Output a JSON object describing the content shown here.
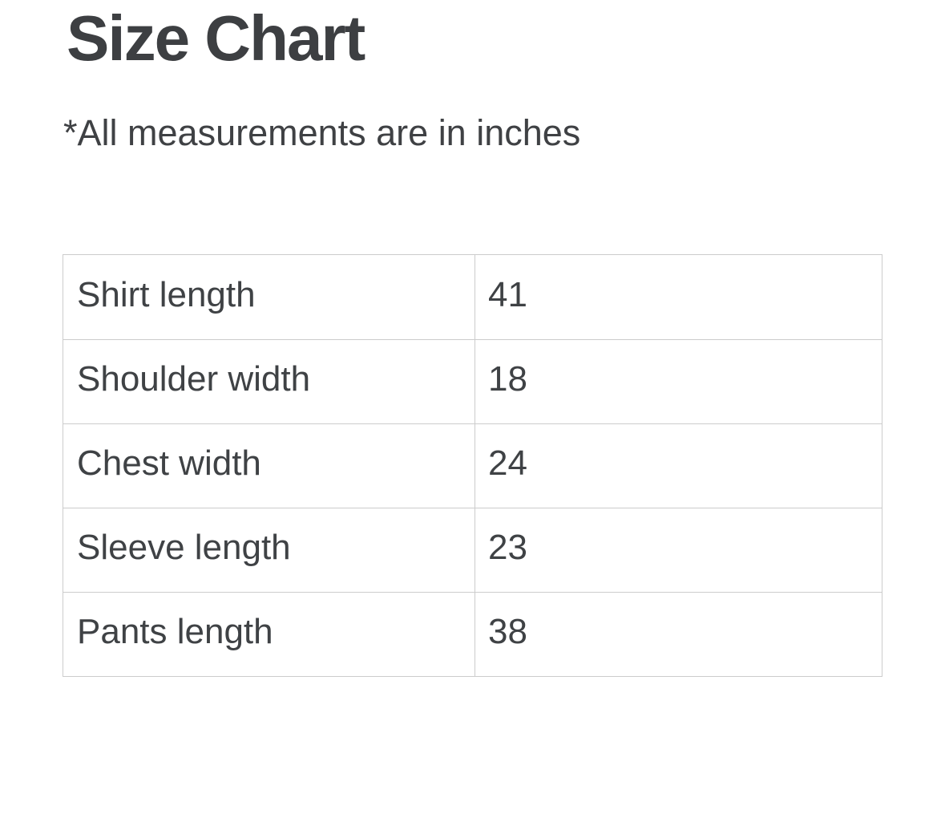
{
  "page": {
    "title": "Size Chart",
    "note": "*All measurements are in inches"
  },
  "size_table": {
    "rows": [
      {
        "label": "Shirt length",
        "value": "41"
      },
      {
        "label": "Shoulder width",
        "value": "18"
      },
      {
        "label": "Chest width",
        "value": "24"
      },
      {
        "label": "Sleeve length",
        "value": "23"
      },
      {
        "label": "Pants length",
        "value": "38"
      }
    ]
  },
  "colors": {
    "heading_text": "#3d3f42",
    "body_text": "#3f4245",
    "table_border": "#cccccc",
    "background": "#ffffff"
  }
}
